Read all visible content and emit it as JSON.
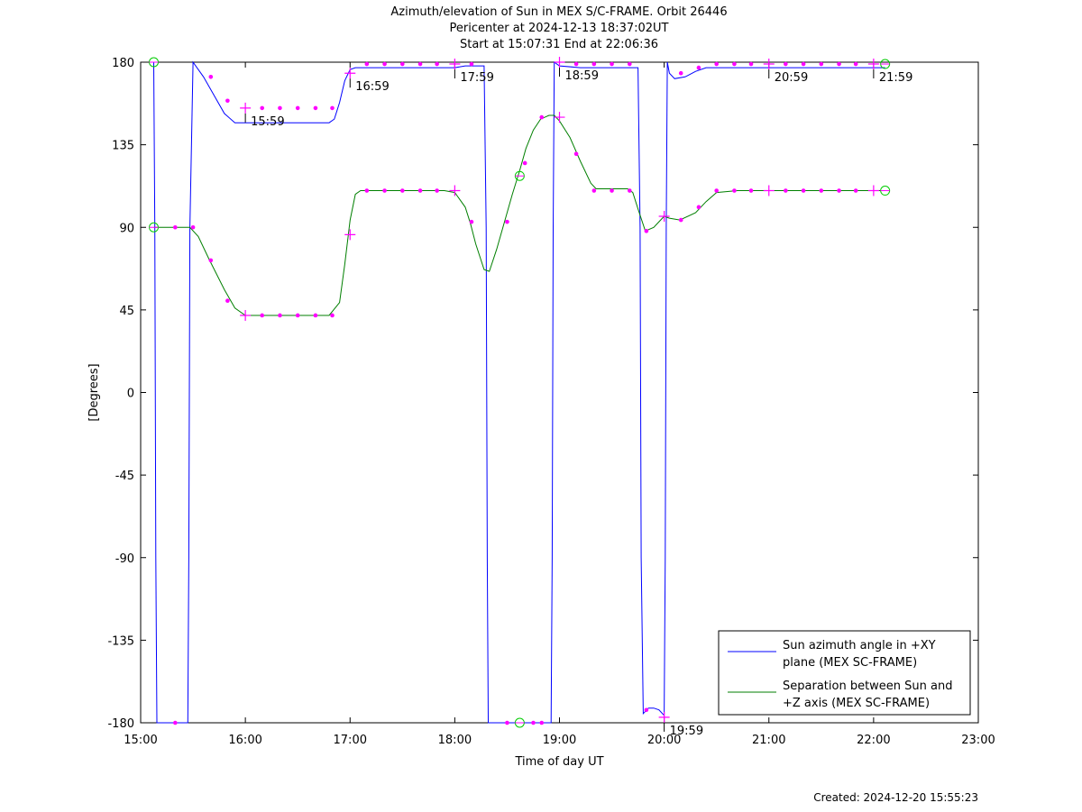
{
  "chart_data": {
    "type": "line",
    "title_lines": [
      "Azimuth/elevation of Sun in MEX S/C-FRAME.  Orbit 26446",
      "Pericenter at 2024-12-13 18:37:02UT",
      "Start at 15:07:31 End at 22:06:36"
    ],
    "xlabel": "Time of day UT",
    "ylabel": "[Degrees]",
    "xlim": [
      15.0,
      23.0
    ],
    "ylim": [
      -180,
      180
    ],
    "x_ticks": [
      15,
      16,
      17,
      18,
      19,
      20,
      21,
      22,
      23
    ],
    "x_tick_labels": [
      "15:00",
      "16:00",
      "17:00",
      "18:00",
      "19:00",
      "20:00",
      "21:00",
      "22:00",
      "23:00"
    ],
    "y_ticks": [
      180,
      135,
      90,
      45,
      0,
      -45,
      -90,
      -135,
      -180
    ],
    "y_tick_labels": [
      "180",
      "135",
      "90",
      "45",
      "0",
      "-45",
      "-90",
      "-135",
      "-180"
    ],
    "grid": false,
    "legend_position": "bottom-right",
    "series": [
      {
        "name": "Sun azimuth angle in +XY plane (MEX SC-FRAME)",
        "legend_lines": [
          "Sun azimuth angle in +XY",
          "plane (MEX SC-FRAME)"
        ],
        "color": "#0000ff",
        "x": [
          15.125,
          15.135,
          15.145,
          15.155,
          15.3,
          15.45,
          15.46,
          15.47,
          15.5,
          15.6,
          15.7,
          15.8,
          15.9,
          16.0,
          16.2,
          16.4,
          16.6,
          16.8,
          16.85,
          16.9,
          16.95,
          17.0,
          17.05,
          17.1,
          17.3,
          17.5,
          17.7,
          17.9,
          18.0,
          18.1,
          18.2,
          18.28,
          18.3,
          18.31,
          18.32,
          18.35,
          18.5,
          18.6,
          18.7,
          18.8,
          18.92,
          18.93,
          18.94,
          18.95,
          19.0,
          19.2,
          19.4,
          19.6,
          19.75,
          19.77,
          19.78,
          19.8,
          19.85,
          19.9,
          19.95,
          20.0,
          20.01,
          20.02,
          20.03,
          20.05,
          20.1,
          20.2,
          20.3,
          20.4,
          20.5,
          20.7,
          21.0,
          21.3,
          21.6,
          21.9,
          22.11
        ],
        "y": [
          180,
          90,
          -90,
          -180,
          -180,
          -180,
          -90,
          90,
          180,
          172,
          162,
          152,
          147,
          147,
          147,
          147,
          147,
          147,
          149,
          158,
          170,
          176,
          177,
          177,
          177,
          177,
          177,
          177,
          177,
          178,
          178,
          178,
          90,
          -90,
          -180,
          -180,
          -180,
          -180,
          -180,
          -180,
          -180,
          -90,
          90,
          180,
          178,
          177,
          177,
          177,
          177,
          90,
          -90,
          -175,
          -172,
          -172,
          -173,
          -176,
          -90,
          90,
          180,
          174,
          171,
          172,
          175,
          177,
          177,
          177,
          177,
          177,
          177,
          177,
          177
        ]
      },
      {
        "name": "Separation between Sun and +Z axis (MEX SC-FRAME)",
        "legend_lines": [
          "Separation between Sun and",
          "+Z axis (MEX SC-FRAME)"
        ],
        "color": "#007f00",
        "x": [
          15.125,
          15.3,
          15.47,
          15.55,
          15.65,
          15.8,
          15.9,
          16.0,
          16.2,
          16.4,
          16.6,
          16.8,
          16.9,
          16.95,
          17.0,
          17.05,
          17.1,
          17.3,
          17.5,
          17.7,
          17.9,
          18.0,
          18.1,
          18.15,
          18.2,
          18.28,
          18.33,
          18.4,
          18.48,
          18.55,
          18.62,
          18.68,
          18.75,
          18.82,
          18.9,
          18.95,
          19.0,
          19.1,
          19.2,
          19.3,
          19.35,
          19.5,
          19.65,
          19.7,
          19.75,
          19.82,
          19.9,
          19.95,
          20.0,
          20.05,
          20.15,
          20.3,
          20.4,
          20.5,
          20.7,
          21.0,
          21.3,
          21.6,
          21.9,
          22.11
        ],
        "y": [
          90,
          90,
          90,
          85,
          73,
          56,
          46,
          42,
          42,
          42,
          42,
          42,
          49,
          70,
          94,
          108,
          110,
          110,
          110,
          110,
          110,
          109,
          101,
          92,
          81,
          67,
          66,
          78,
          94,
          108,
          121,
          133,
          143,
          149,
          151,
          151,
          148,
          139,
          126,
          114,
          111,
          111,
          111,
          109,
          100,
          88,
          90,
          93,
          96,
          95,
          94,
          98,
          104,
          109,
          110,
          110,
          110,
          110,
          110,
          110
        ]
      }
    ],
    "dot_markers": [
      {
        "x": 15.33,
        "y": -180
      },
      {
        "x": 15.67,
        "y": 172
      },
      {
        "x": 15.83,
        "y": 159
      },
      {
        "x": 16.16,
        "y": 155
      },
      {
        "x": 16.33,
        "y": 155
      },
      {
        "x": 16.5,
        "y": 155
      },
      {
        "x": 16.67,
        "y": 155
      },
      {
        "x": 16.83,
        "y": 155
      },
      {
        "x": 17.16,
        "y": 179
      },
      {
        "x": 17.33,
        "y": 179
      },
      {
        "x": 17.5,
        "y": 179
      },
      {
        "x": 17.67,
        "y": 179
      },
      {
        "x": 17.83,
        "y": 179
      },
      {
        "x": 18.16,
        "y": 179
      },
      {
        "x": 18.5,
        "y": -180
      },
      {
        "x": 18.75,
        "y": -180
      },
      {
        "x": 18.83,
        "y": -180
      },
      {
        "x": 19.16,
        "y": 179
      },
      {
        "x": 19.33,
        "y": 179
      },
      {
        "x": 19.5,
        "y": 179
      },
      {
        "x": 19.67,
        "y": 179
      },
      {
        "x": 19.83,
        "y": -173
      },
      {
        "x": 20.16,
        "y": 174
      },
      {
        "x": 20.33,
        "y": 177
      },
      {
        "x": 20.5,
        "y": 179
      },
      {
        "x": 20.67,
        "y": 179
      },
      {
        "x": 20.83,
        "y": 179
      },
      {
        "x": 21.16,
        "y": 179
      },
      {
        "x": 21.33,
        "y": 179
      },
      {
        "x": 21.5,
        "y": 179
      },
      {
        "x": 21.67,
        "y": 179
      },
      {
        "x": 21.83,
        "y": 179
      },
      {
        "x": 15.33,
        "y": 90
      },
      {
        "x": 15.5,
        "y": 90
      },
      {
        "x": 15.67,
        "y": 72
      },
      {
        "x": 15.83,
        "y": 50
      },
      {
        "x": 16.16,
        "y": 42
      },
      {
        "x": 16.33,
        "y": 42
      },
      {
        "x": 16.5,
        "y": 42
      },
      {
        "x": 16.67,
        "y": 42
      },
      {
        "x": 16.83,
        "y": 42
      },
      {
        "x": 17.16,
        "y": 110
      },
      {
        "x": 17.33,
        "y": 110
      },
      {
        "x": 17.5,
        "y": 110
      },
      {
        "x": 17.67,
        "y": 110
      },
      {
        "x": 17.83,
        "y": 110
      },
      {
        "x": 18.16,
        "y": 93
      },
      {
        "x": 18.5,
        "y": 93
      },
      {
        "x": 18.67,
        "y": 125
      },
      {
        "x": 18.83,
        "y": 150
      },
      {
        "x": 19.16,
        "y": 130
      },
      {
        "x": 19.33,
        "y": 110
      },
      {
        "x": 19.5,
        "y": 110
      },
      {
        "x": 19.67,
        "y": 110
      },
      {
        "x": 19.83,
        "y": 88
      },
      {
        "x": 20.16,
        "y": 94
      },
      {
        "x": 20.33,
        "y": 101
      },
      {
        "x": 20.5,
        "y": 110
      },
      {
        "x": 20.67,
        "y": 110
      },
      {
        "x": 20.83,
        "y": 110
      },
      {
        "x": 21.16,
        "y": 110
      },
      {
        "x": 21.33,
        "y": 110
      },
      {
        "x": 21.5,
        "y": 110
      },
      {
        "x": 21.67,
        "y": 110
      },
      {
        "x": 21.83,
        "y": 110
      }
    ],
    "plus_markers": [
      {
        "x": 16.0,
        "y": 155
      },
      {
        "x": 17.0,
        "y": 174
      },
      {
        "x": 18.0,
        "y": 179
      },
      {
        "x": 19.0,
        "y": 180
      },
      {
        "x": 20.0,
        "y": -177
      },
      {
        "x": 21.0,
        "y": 179
      },
      {
        "x": 22.0,
        "y": 179
      },
      {
        "x": 16.0,
        "y": 42
      },
      {
        "x": 17.0,
        "y": 86
      },
      {
        "x": 18.0,
        "y": 110
      },
      {
        "x": 19.0,
        "y": 150
      },
      {
        "x": 20.0,
        "y": 96
      },
      {
        "x": 21.0,
        "y": 110
      },
      {
        "x": 22.0,
        "y": 110
      }
    ],
    "circle_markers": [
      {
        "x": 15.125,
        "y": 180
      },
      {
        "x": 22.11,
        "y": 179
      },
      {
        "x": 15.125,
        "y": 90
      },
      {
        "x": 22.11,
        "y": 110
      },
      {
        "x": 18.62,
        "y": -180
      },
      {
        "x": 18.62,
        "y": 118
      }
    ],
    "hour_annotations": [
      {
        "label": "15:59",
        "x": 16.0,
        "y": 155,
        "dir": "down"
      },
      {
        "label": "16:59",
        "x": 17.0,
        "y": 174,
        "dir": "down"
      },
      {
        "label": "17:59",
        "x": 18.0,
        "y": 179,
        "dir": "down"
      },
      {
        "label": "18:59",
        "x": 19.0,
        "y": 180,
        "dir": "down"
      },
      {
        "label": "19:59",
        "x": 20.0,
        "y": -177,
        "dir": "down"
      },
      {
        "label": "20:59",
        "x": 21.0,
        "y": 179,
        "dir": "down"
      },
      {
        "label": "21:59",
        "x": 22.0,
        "y": 179,
        "dir": "down"
      }
    ],
    "created": "Created: 2024-12-20 15:55:23"
  }
}
